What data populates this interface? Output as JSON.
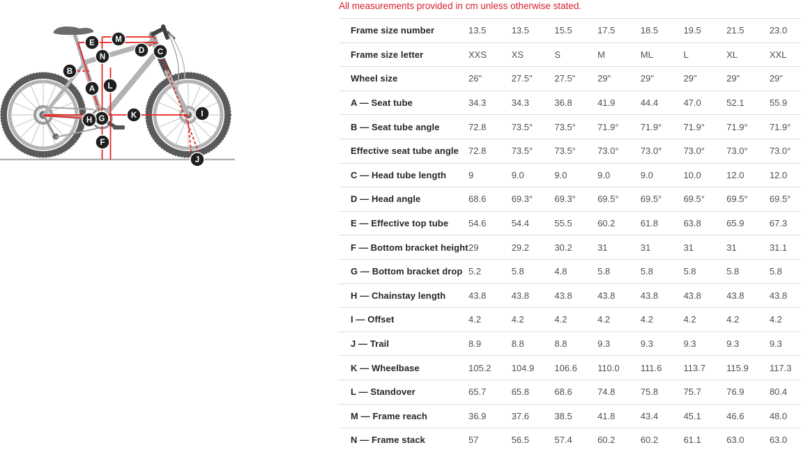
{
  "note": "All measurements provided in cm unless otherwise stated.",
  "colors": {
    "accent_red": "#d4202e",
    "measure_line_red": "#e8231e",
    "marker_bg": "#1f1f1f",
    "bike_frame_gray": "#b1b3b5",
    "bike_dark_gray": "#58595b",
    "divider_gray": "#dcdcdc"
  },
  "diagram": {
    "markers": [
      "A",
      "B",
      "C",
      "D",
      "E",
      "F",
      "G",
      "H",
      "I",
      "J",
      "K",
      "L",
      "M",
      "N"
    ]
  },
  "chart_data": {
    "type": "table",
    "title": "All measurements provided in cm unless otherwise stated.",
    "columns": [
      "XXS",
      "XS",
      "S",
      "M",
      "ML",
      "L",
      "XL",
      "XXL"
    ],
    "rows": [
      {
        "label": "Frame size number",
        "values": [
          "13.5",
          "13.5",
          "15.5",
          "17.5",
          "18.5",
          "19.5",
          "21.5",
          "23.0"
        ]
      },
      {
        "label": "Frame size letter",
        "values": [
          "XXS",
          "XS",
          "S",
          "M",
          "ML",
          "L",
          "XL",
          "XXL"
        ]
      },
      {
        "label": "Wheel size",
        "values": [
          "26\"",
          "27.5\"",
          "27.5\"",
          "29\"",
          "29\"",
          "29\"",
          "29\"",
          "29\""
        ]
      },
      {
        "label": "A — Seat tube",
        "values": [
          "34.3",
          "34.3",
          "36.8",
          "41.9",
          "44.4",
          "47.0",
          "52.1",
          "55.9"
        ]
      },
      {
        "label": "B — Seat tube angle",
        "values": [
          "72.8",
          "73.5°",
          "73.5°",
          "71.9°",
          "71.9°",
          "71.9°",
          "71.9°",
          "71.9°"
        ]
      },
      {
        "label": "Effective seat tube angle",
        "values": [
          "72.8",
          "73.5°",
          "73.5°",
          "73.0°",
          "73.0°",
          "73.0°",
          "73.0°",
          "73.0°"
        ]
      },
      {
        "label": "C — Head tube length",
        "values": [
          "9",
          "9.0",
          "9.0",
          "9.0",
          "9.0",
          "10.0",
          "12.0",
          "12.0"
        ]
      },
      {
        "label": "D — Head angle",
        "values": [
          "68.6",
          "69.3°",
          "69.3°",
          "69.5°",
          "69.5°",
          "69.5°",
          "69.5°",
          "69.5°"
        ]
      },
      {
        "label": "E — Effective top tube",
        "values": [
          "54.6",
          "54.4",
          "55.5",
          "60.2",
          "61.8",
          "63.8",
          "65.9",
          "67.3"
        ]
      },
      {
        "label": "F — Bottom bracket height",
        "values": [
          "29",
          "29.2",
          "30.2",
          "31",
          "31",
          "31",
          "31",
          "31.1"
        ]
      },
      {
        "label": "G — Bottom bracket drop",
        "values": [
          "5.2",
          "5.8",
          "4.8",
          "5.8",
          "5.8",
          "5.8",
          "5.8",
          "5.8"
        ]
      },
      {
        "label": "H — Chainstay length",
        "values": [
          "43.8",
          "43.8",
          "43.8",
          "43.8",
          "43.8",
          "43.8",
          "43.8",
          "43.8"
        ]
      },
      {
        "label": "I — Offset",
        "values": [
          "4.2",
          "4.2",
          "4.2",
          "4.2",
          "4.2",
          "4.2",
          "4.2",
          "4.2"
        ]
      },
      {
        "label": "J — Trail",
        "values": [
          "8.9",
          "8.8",
          "8.8",
          "9.3",
          "9.3",
          "9.3",
          "9.3",
          "9.3"
        ]
      },
      {
        "label": "K — Wheelbase",
        "values": [
          "105.2",
          "104.9",
          "106.6",
          "110.0",
          "111.6",
          "113.7",
          "115.9",
          "117.3"
        ]
      },
      {
        "label": "L — Standover",
        "values": [
          "65.7",
          "65.8",
          "68.6",
          "74.8",
          "75.8",
          "75.7",
          "76.9",
          "80.4"
        ]
      },
      {
        "label": "M — Frame reach",
        "values": [
          "36.9",
          "37.6",
          "38.5",
          "41.8",
          "43.4",
          "45.1",
          "46.6",
          "48.0"
        ]
      },
      {
        "label": "N — Frame stack",
        "values": [
          "57",
          "56.5",
          "57.4",
          "60.2",
          "60.2",
          "61.1",
          "63.0",
          "63.0"
        ]
      }
    ]
  }
}
